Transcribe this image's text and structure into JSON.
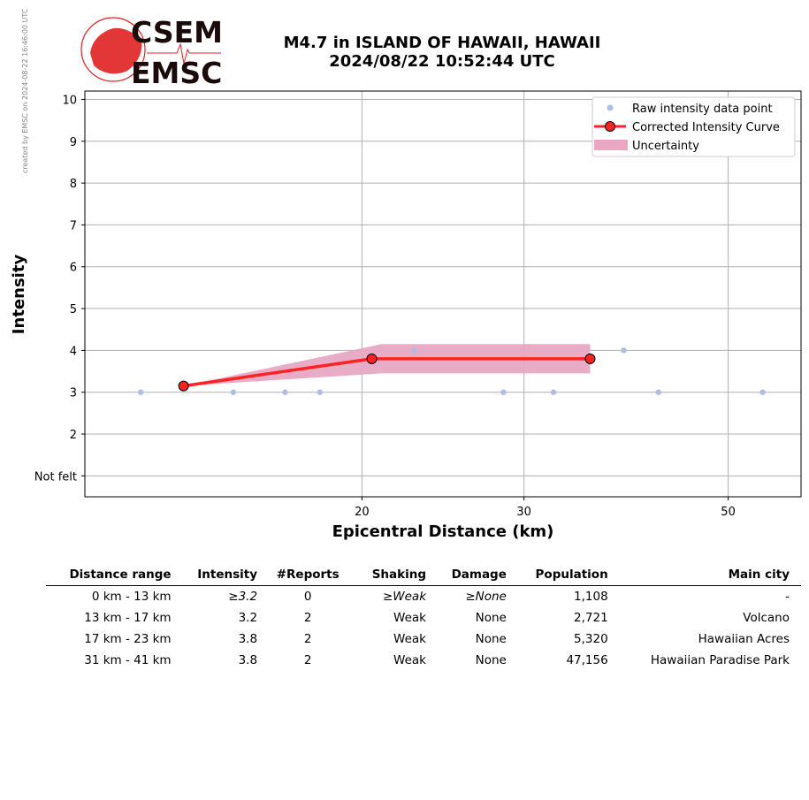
{
  "watermark": "created by EMSC on 2024-08-22 16:46:00 UTC",
  "logo": {
    "line1": "CSEM",
    "line2": "EMSC"
  },
  "title": {
    "line1": "M4.7 in ISLAND OF HAWAII, HAWAII",
    "line2": "2024/08/22 10:52:44 UTC"
  },
  "colors": {
    "raw_points": "#aebde6",
    "curve": "#ff2222",
    "uncertainty": "#e8a8c4",
    "logo_red": "#e02020",
    "grid": "#b0b0b0"
  },
  "chart_data": {
    "type": "line",
    "xlabel": "Epicentral Distance (km)",
    "ylabel": "Intensity",
    "x_scale": "log",
    "xlim": [
      10,
      60
    ],
    "ylim": [
      0.5,
      10.2
    ],
    "x_ticks": [
      20,
      30,
      50
    ],
    "y_ticks": [
      1,
      2,
      3,
      4,
      5,
      6,
      7,
      8,
      9,
      10
    ],
    "y_tick_labels": [
      "Not felt",
      "2",
      "3",
      "4",
      "5",
      "6",
      "7",
      "8",
      "9",
      "10"
    ],
    "grid": true,
    "legend": "top-right",
    "legend_entries": [
      "Raw intensity data point",
      "Corrected Intensity Curve",
      "Uncertainty"
    ],
    "raw_points": [
      {
        "x": 11.5,
        "y": 3
      },
      {
        "x": 14.5,
        "y": 3
      },
      {
        "x": 16.5,
        "y": 3
      },
      {
        "x": 18.0,
        "y": 3
      },
      {
        "x": 22.8,
        "y": 4
      },
      {
        "x": 28.5,
        "y": 3
      },
      {
        "x": 32.3,
        "y": 3
      },
      {
        "x": 38.5,
        "y": 4
      },
      {
        "x": 42.0,
        "y": 3
      },
      {
        "x": 54.5,
        "y": 3
      }
    ],
    "curve": [
      {
        "x": 12.8,
        "y": 3.15
      },
      {
        "x": 20.5,
        "y": 3.8
      },
      {
        "x": 35.4,
        "y": 3.8
      }
    ],
    "uncertainty": [
      {
        "x": 12.8,
        "lower": 3.15,
        "upper": 3.15
      },
      {
        "x": 21.0,
        "lower": 3.45,
        "upper": 4.15
      },
      {
        "x": 35.4,
        "lower": 3.45,
        "upper": 4.15
      }
    ]
  },
  "table": {
    "headers": [
      "Distance range",
      "Intensity",
      "#Reports",
      "Shaking",
      "Damage",
      "Population",
      "Main city"
    ],
    "rows": [
      [
        "0 km -   13 km",
        "≥3.2",
        "0",
        "≥Weak",
        "≥None",
        "1,108",
        "-"
      ],
      [
        "13 km -   17 km",
        "3.2",
        "2",
        "Weak",
        "None",
        "2,721",
        "Volcano"
      ],
      [
        "17 km -   23 km",
        "3.8",
        "2",
        "Weak",
        "None",
        "5,320",
        "Hawaiian Acres"
      ],
      [
        "31 km -   41 km",
        "3.8",
        "2",
        "Weak",
        "None",
        "47,156",
        "Hawaiian Paradise Park"
      ]
    ]
  }
}
